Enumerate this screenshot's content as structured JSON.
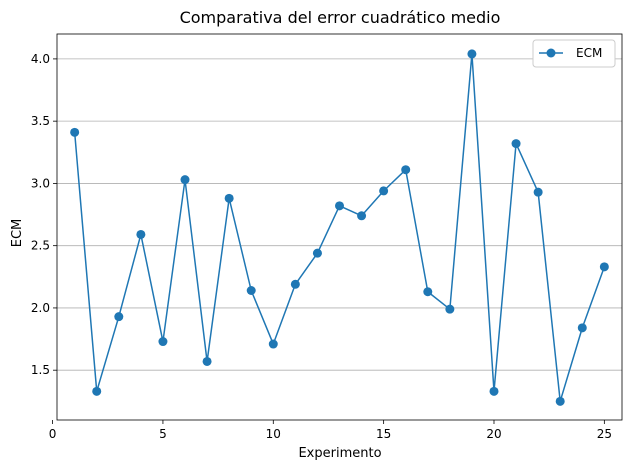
{
  "colors": {
    "series": "#1f77b4",
    "grid": "#b0b0b0",
    "axis": "#000000",
    "background": "#ffffff"
  },
  "chart_data": {
    "type": "line",
    "title": "Comparativa del error cuadrático medio",
    "xlabel": "Experimento",
    "ylabel": "ECM",
    "xlim": [
      0.2,
      25.8
    ],
    "ylim": [
      1.1,
      4.2
    ],
    "x_ticks": [
      0,
      5,
      10,
      15,
      20,
      25
    ],
    "x_tick_labels": [
      "0",
      "5",
      "10",
      "15",
      "20",
      "25"
    ],
    "y_ticks": [
      1.5,
      2.0,
      2.5,
      3.0,
      3.5,
      4.0
    ],
    "y_tick_labels": [
      "1.5",
      "2.0",
      "2.5",
      "3.0",
      "3.5",
      "4.0"
    ],
    "grid": "y-axis",
    "legend_position": "top-right",
    "x": [
      1,
      2,
      3,
      4,
      5,
      6,
      7,
      8,
      9,
      10,
      11,
      12,
      13,
      14,
      15,
      16,
      17,
      18,
      19,
      20,
      21,
      22,
      23,
      24,
      25
    ],
    "series": [
      {
        "name": "ECM",
        "marker": "circle",
        "values": [
          3.41,
          1.33,
          1.93,
          2.59,
          1.73,
          3.03,
          1.57,
          2.88,
          2.14,
          1.71,
          2.19,
          2.44,
          2.82,
          2.74,
          2.94,
          3.11,
          2.13,
          1.99,
          4.04,
          1.33,
          3.32,
          2.93,
          1.25,
          1.84,
          2.33
        ]
      }
    ]
  }
}
